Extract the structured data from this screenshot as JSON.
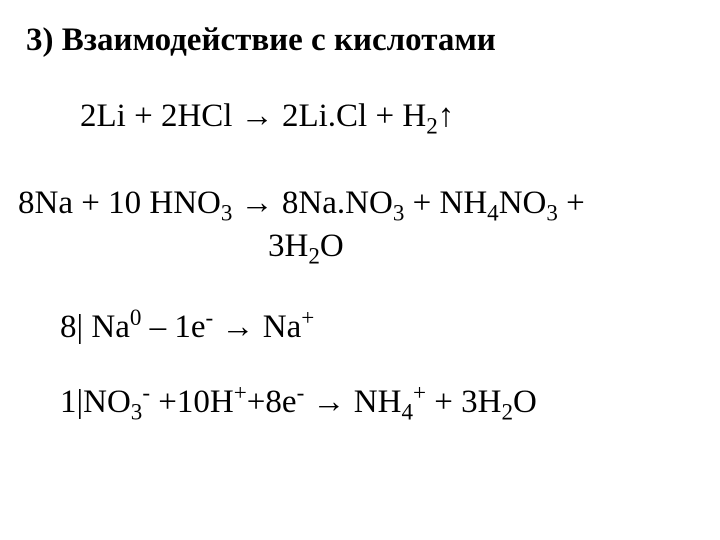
{
  "document": {
    "background_color": "#ffffff",
    "text_color": "#000000",
    "font_family": "Times New Roman",
    "heading_fontsize": 33,
    "body_fontsize": 33
  },
  "heading": "3) Взаимодействие с кислотами",
  "eq1": {
    "lhs_coef1": "2",
    "lhs_sp1": "Li",
    "plus1": " + ",
    "lhs_coef2": "2",
    "lhs_sp2": "HCl",
    "arrow": " → ",
    "rhs_coef1": "2",
    "rhs_sp1": "Li",
    "dot": ".",
    "rhs_sp1b": "Cl",
    "plus2": " + ",
    "rhs_sp2": "H",
    "rhs_sub2": "2",
    "up": "↑"
  },
  "eq2": {
    "lhs_coef1": "8",
    "lhs_sp1": "Na",
    "plus1": " + ",
    "lhs_coef2": "10 ",
    "lhs_sp2": "HNO",
    "lhs_sub2": "3",
    "arrow": "  → ",
    "rhs_coef1": "8",
    "rhs_sp1a": "Na",
    "dot1": ".",
    "rhs_sp1b": "NO",
    "rhs_sub1": "3",
    "plus2": " + ",
    "rhs_sp2a": "NH",
    "rhs_sub2a": "4",
    "rhs_sp2b": "NO",
    "rhs_sub2b": "3",
    "plus3": " +",
    "line2_coef": "3",
    "line2_sp": "H",
    "line2_sub1": "2",
    "line2_sp2": "O"
  },
  "eq3": {
    "pre": "8| ",
    "sp1": "Na",
    "sup1": "0",
    "mid": " – 1",
    "e": "e",
    "esup": "-",
    "arrow": " → ",
    "sp2": "Na",
    "sup2": "+"
  },
  "eq4": {
    "pre": "1|",
    "sp1": "NO",
    "sub1": "3",
    "sup1": "-",
    "mid1": " +10",
    "sp2": "H",
    "sup2": "+",
    "mid2": "+8",
    "e": "e",
    "esup": "-",
    "arrow": " → ",
    "sp3": "NH",
    "sub3": "4",
    "sup3": "+",
    "plus": " + ",
    "coef4": "3",
    "sp4": "H",
    "sub4": "2",
    "sp5": "O"
  }
}
